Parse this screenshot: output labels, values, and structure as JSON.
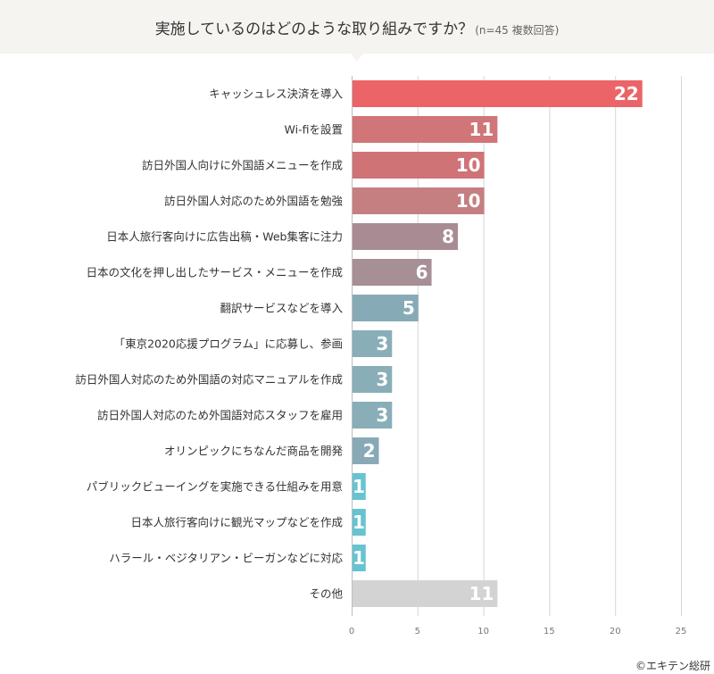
{
  "header": {
    "title": "実施しているのはどのような取り組みですか？",
    "subtitle": "(n=45 複数回答)"
  },
  "credit": "©エキテン総研",
  "chart_data": {
    "type": "bar",
    "orientation": "horizontal",
    "title": "実施しているのはどのような取り組みですか？",
    "subtitle": "(n=45 複数回答)",
    "xlabel": "",
    "ylabel": "",
    "xlim": [
      0,
      25
    ],
    "xticks": [
      0,
      5,
      10,
      15,
      20,
      25
    ],
    "grid": true,
    "categories": [
      "キャッシュレス決済を導入",
      "Wi-fiを設置",
      "訪日外国人向けに外国語メニューを作成",
      "訪日外国人対応のため外国語を勉強",
      "日本人旅行客向けに広告出稿・Web集客に注力",
      "日本の文化を押し出したサービス・メニューを作成",
      "翻訳サービスなどを導入",
      "「東京2020応援プログラム」に応募し、参画",
      "訪日外国人対応のため外国語の対応マニュアルを作成",
      "訪日外国人対応のため外国語対応スタッフを雇用",
      "オリンピックにちなんだ商品を開発",
      "パブリックビューイングを実施できる仕組みを用意",
      "日本人旅行客向けに観光マップなどを作成",
      "ハラール・ベジタリアン・ビーガンなどに対応",
      "その他"
    ],
    "values": [
      22,
      11,
      10,
      10,
      8,
      6,
      5,
      3,
      3,
      3,
      2,
      1,
      1,
      1,
      11
    ],
    "colors": [
      "#eb6568",
      "#d07578",
      "#cf7377",
      "#c57f80",
      "#a98c93",
      "#a78f96",
      "#87abb6",
      "#89aeb7",
      "#89aeb7",
      "#89aeb7",
      "#88aab6",
      "#67c3d0",
      "#67c3d0",
      "#67c3d0",
      "#d3d3d3"
    ]
  }
}
